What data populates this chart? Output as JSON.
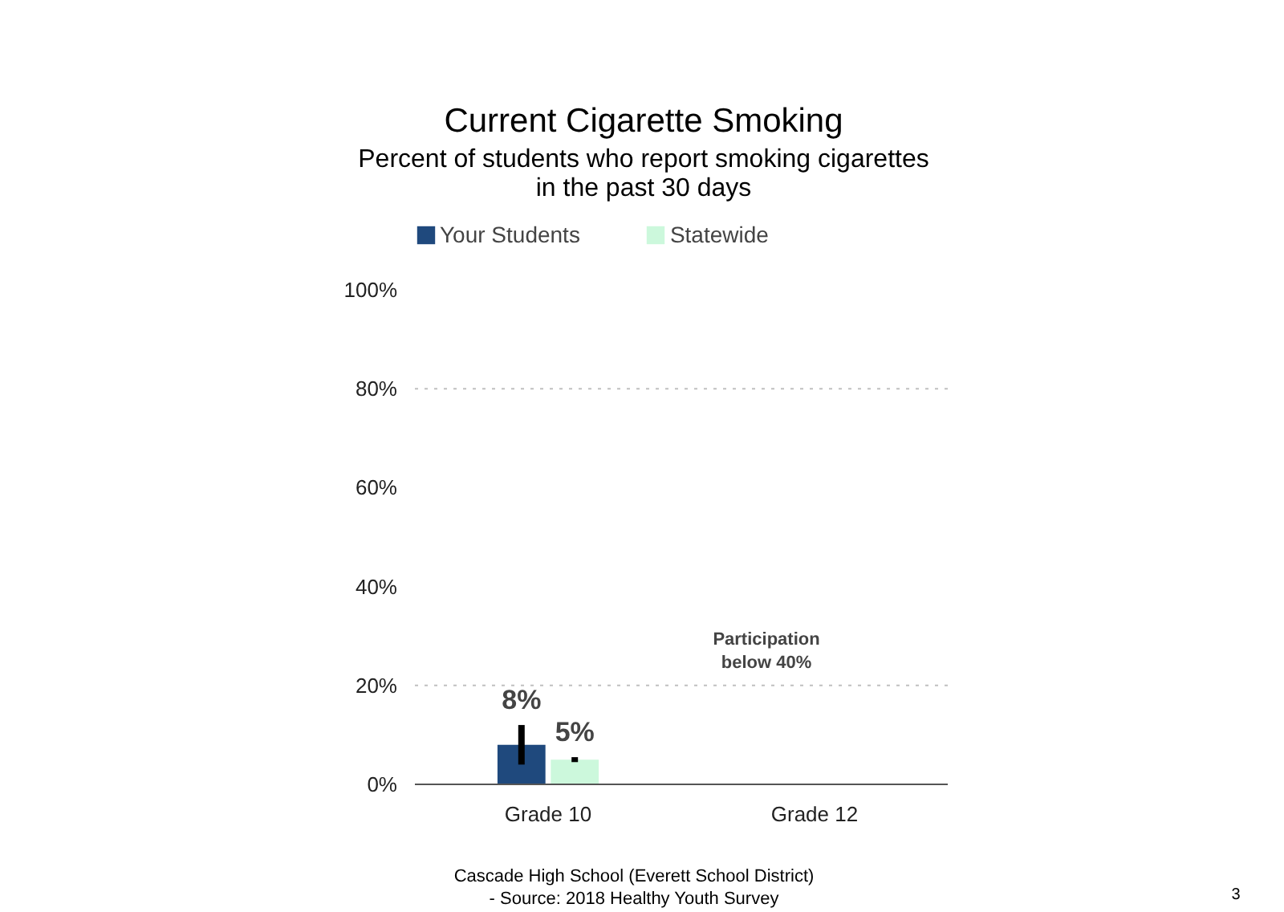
{
  "chart_data": {
    "type": "bar",
    "title": "Current Cigarette Smoking",
    "subtitle": "Percent of students who report smoking cigarettes\nin the past 30 days",
    "categories": [
      "Grade 10",
      "Grade 12"
    ],
    "series": [
      {
        "name": "Your Students",
        "color": "#1f497d",
        "values": [
          8,
          null
        ],
        "errors": [
          [
            4,
            12
          ],
          null
        ],
        "value_labels": [
          "8%",
          null
        ]
      },
      {
        "name": "Statewide",
        "color": "#ccf8dc",
        "values": [
          5,
          null
        ],
        "errors": [
          [
            4.5,
            5.5
          ],
          null
        ],
        "value_labels": [
          "5%",
          null
        ]
      }
    ],
    "ylim": [
      0,
      100
    ],
    "yticks": [
      {
        "value": 0,
        "label": "0%"
      },
      {
        "value": 20,
        "label": "20%"
      },
      {
        "value": 40,
        "label": "40%"
      },
      {
        "value": 60,
        "label": "60%"
      },
      {
        "value": 80,
        "label": "80%"
      },
      {
        "value": 100,
        "label": "100%"
      }
    ],
    "ref_lines": [
      {
        "axis": "y",
        "value": 20,
        "label": null,
        "color": "#c0c0c0",
        "line_style": "dotted"
      },
      {
        "axis": "y",
        "value": 80,
        "label": null,
        "color": "#c0c0c0",
        "line_style": "dotted"
      }
    ],
    "legend": "top",
    "annotations": [
      "Participation\nbelow 40%",
      "Cascade High School (Everett School District)\n- Source: 2018 Healthy  Youth Survey",
      "3"
    ]
  }
}
